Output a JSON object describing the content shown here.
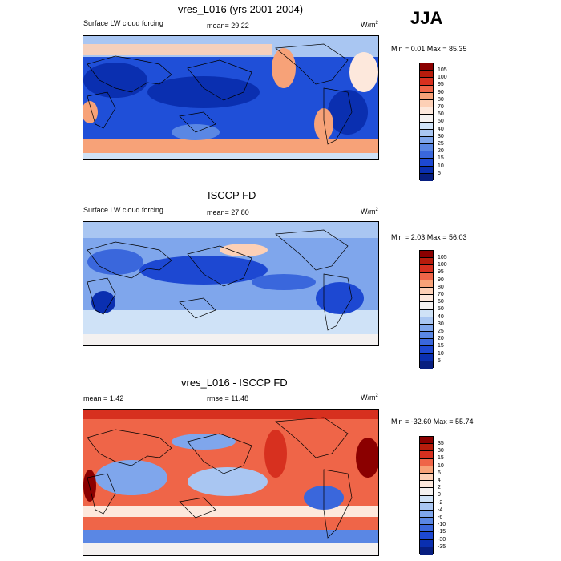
{
  "season": "JJA",
  "panels": [
    {
      "title": "vres_L016 (yrs 2001-2004)",
      "variable": "Surface LW cloud forcing",
      "left_stat": "",
      "mean": "mean=  29.22",
      "units": "W/m",
      "units_sup": "2",
      "minmax": "Min =   0.01 Max =  85.35",
      "levels": [
        "105",
        "100",
        "95",
        "90",
        "80",
        "70",
        "60",
        "50",
        "40",
        "30",
        "25",
        "20",
        "15",
        "10",
        "5"
      ],
      "colors": [
        "#8b0000",
        "#b71c0c",
        "#d7301f",
        "#ef6548",
        "#f7a278",
        "#fdd0b6",
        "#fde8dc",
        "#f4f1f0",
        "#cfe2f7",
        "#a9c6f2",
        "#7fa6ec",
        "#5a87e4",
        "#3a67dc",
        "#1d48d2",
        "#0a2fb0",
        "#071e80"
      ]
    },
    {
      "title": "ISCCP FD",
      "variable": "Surface LW cloud forcing",
      "left_stat": "",
      "mean": "mean=  27.80",
      "units": "W/m",
      "units_sup": "2",
      "minmax": "Min =   2.03 Max =  56.03",
      "levels": [
        "105",
        "100",
        "95",
        "90",
        "80",
        "70",
        "60",
        "50",
        "40",
        "30",
        "25",
        "20",
        "15",
        "10",
        "5"
      ],
      "colors": [
        "#8b0000",
        "#b71c0c",
        "#d7301f",
        "#ef6548",
        "#f7a278",
        "#fdd0b6",
        "#fde8dc",
        "#f4f1f0",
        "#cfe2f7",
        "#a9c6f2",
        "#7fa6ec",
        "#5a87e4",
        "#3a67dc",
        "#1d48d2",
        "#0a2fb0",
        "#071e80"
      ]
    },
    {
      "title": "vres_L016 - ISCCP FD",
      "variable": "",
      "left_stat": "mean =   1.42",
      "mean": "rmse =  11.48",
      "units": "W/m",
      "units_sup": "2",
      "minmax": "Min = -32.60 Max =  55.74",
      "levels": [
        "35",
        "30",
        "15",
        "10",
        "6",
        "4",
        "2",
        "0",
        "-2",
        "-4",
        "-6",
        "-10",
        "-15",
        "-30",
        "-35"
      ],
      "colors": [
        "#8b0000",
        "#b71c0c",
        "#d7301f",
        "#ef6548",
        "#f7a278",
        "#fdd0b6",
        "#fde8dc",
        "#f4f1f0",
        "#cfe2f7",
        "#a9c6f2",
        "#7fa6ec",
        "#5a87e4",
        "#3a67dc",
        "#1d48d2",
        "#0a2fb0",
        "#071e80"
      ]
    }
  ]
}
